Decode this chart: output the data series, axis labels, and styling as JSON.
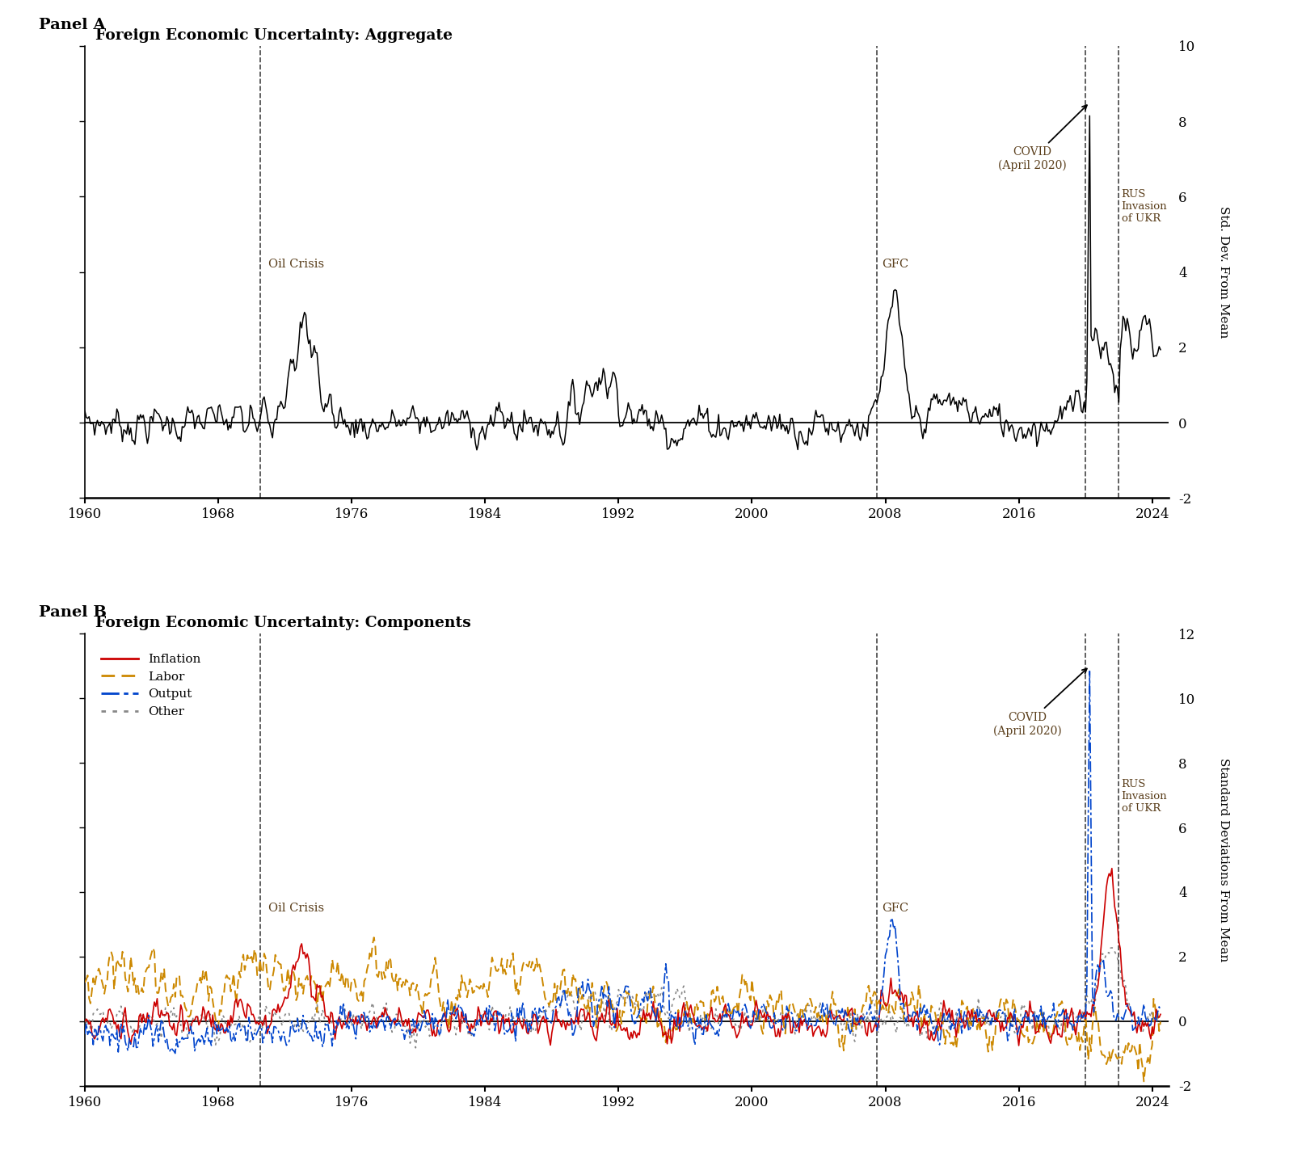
{
  "panel_a_title": "Foreign Economic Uncertainty: Aggregate",
  "panel_b_title": "Foreign Economic Uncertainty: Components",
  "panel_a_label": "Panel A",
  "panel_b_label": "Panel B",
  "ylabel_a": "Std. Dev. From Mean",
  "ylabel_b": "Standard Deviations From Mean",
  "xlim": [
    1960,
    2025
  ],
  "ylim_a": [
    -2,
    10
  ],
  "ylim_b": [
    -2,
    12
  ],
  "yticks_a": [
    -2,
    0,
    2,
    4,
    6,
    8,
    10
  ],
  "yticks_b": [
    -2,
    0,
    2,
    4,
    6,
    8,
    10,
    12
  ],
  "xticks": [
    1960,
    1968,
    1976,
    1984,
    1992,
    2000,
    2008,
    2016,
    2024
  ],
  "vline_oil": 1970.5,
  "vline_gfc": 2007.5,
  "vline_covid": 2020.0,
  "vline_rus": 2022.0,
  "annotation_color": "#5a3e1b",
  "background_color": "#ffffff",
  "line_color_a": "#000000",
  "colors": {
    "inflation": "#cc0000",
    "labor": "#cc8800",
    "output": "#0044cc",
    "other": "#888888"
  }
}
